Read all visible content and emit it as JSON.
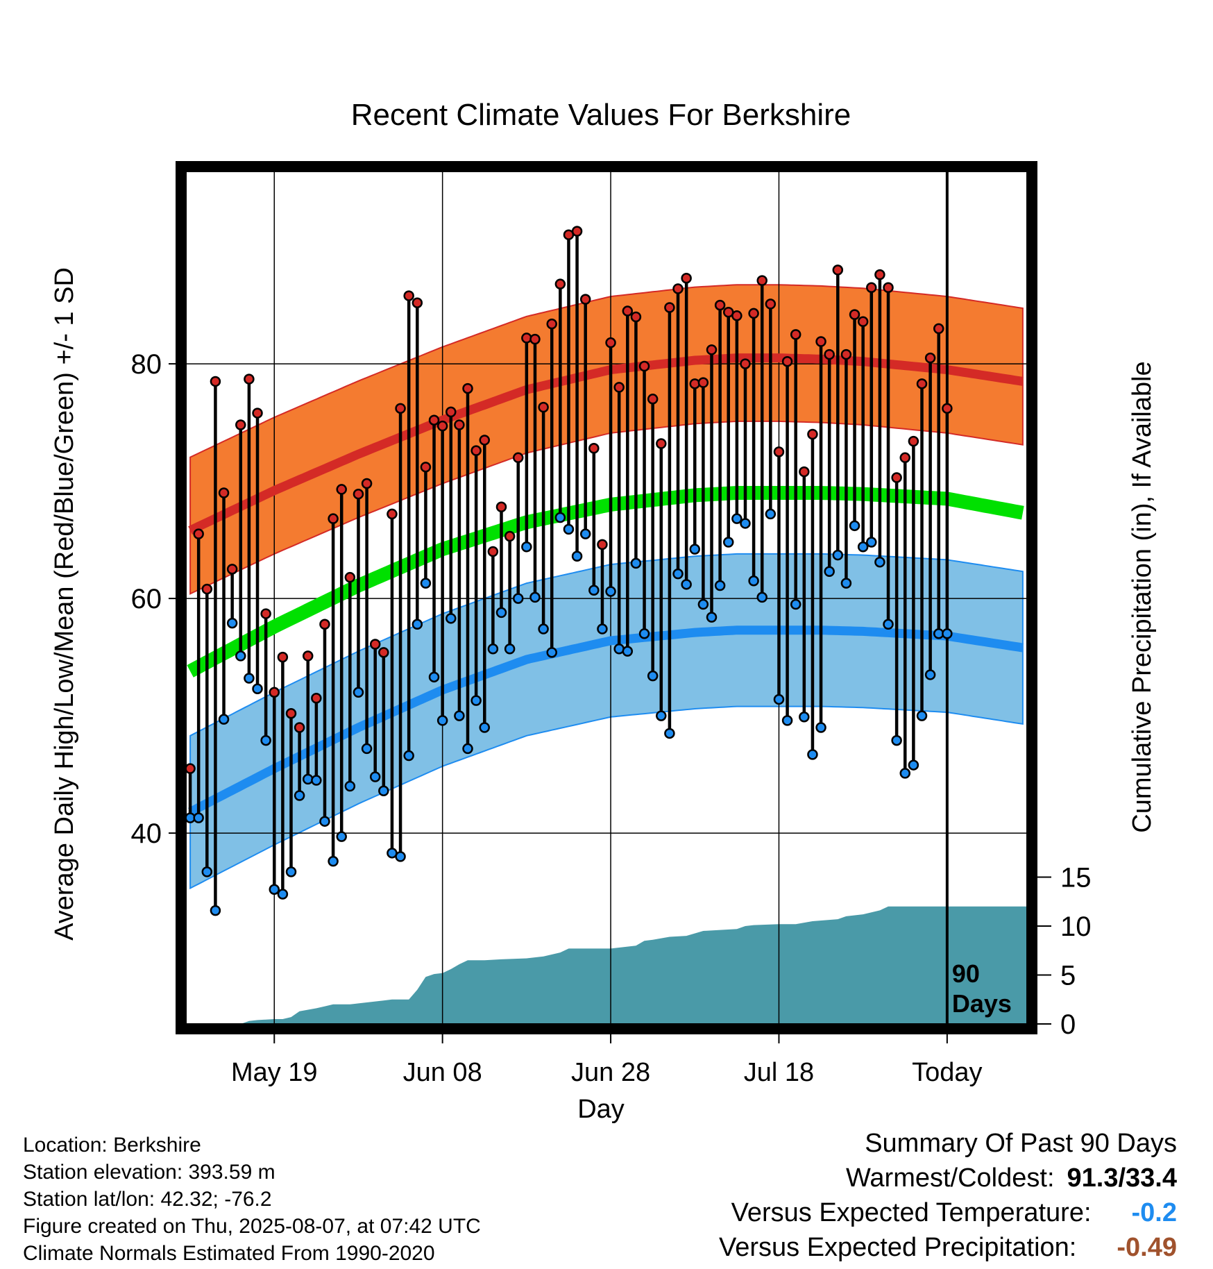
{
  "chart_data": {
    "type": "line",
    "title": "Recent Climate Values For Berkshire",
    "xlabel": "Day",
    "ylabel": "Average Daily High/Low/Mean (Red/Blue/Green) +/- 1 SD",
    "y2label": "Cumulative Precipitation (in), If Available",
    "ylim": [
      24,
      97
    ],
    "y_ticks": [
      40,
      60,
      80
    ],
    "y2lim": [
      0,
      29
    ],
    "y2_ticks": [
      0,
      5,
      10,
      15
    ],
    "x_tick_labels": [
      "May 19",
      "Jun 08",
      "Jun 28",
      "Jul 18",
      "Today"
    ],
    "x_tick_days": [
      10,
      30,
      50,
      70,
      90
    ],
    "xlim": [
      -0.5,
      99.5
    ],
    "grid": true,
    "marker_label": "90\nDays",
    "colors": {
      "high": "#d42a26",
      "high_band": "#f47b30",
      "low": "#1e8cf0",
      "low_band": "#80c0e6",
      "mean": "#00e000",
      "precip": "#4a9aa8",
      "high_dot": "#d42a26",
      "low_dot": "#1e8cf0"
    },
    "normal_high": {
      "x": [
        0,
        10,
        20,
        30,
        40,
        50,
        60,
        65,
        70,
        75,
        80,
        90,
        99
      ],
      "values": [
        65.8,
        69.2,
        72.3,
        75.2,
        77.8,
        79.5,
        80.3,
        80.5,
        80.5,
        80.4,
        80.2,
        79.5,
        78.5
      ]
    },
    "high_sd": 5.4,
    "high_upper_extra": 10.4,
    "normal_low": {
      "x": [
        0,
        10,
        20,
        30,
        40,
        50,
        60,
        65,
        70,
        75,
        80,
        90,
        99
      ],
      "values": [
        41.8,
        45.5,
        49.0,
        52.2,
        54.8,
        56.4,
        57.1,
        57.3,
        57.3,
        57.3,
        57.2,
        56.8,
        55.8
      ]
    },
    "low_sd": 6.5,
    "normal_mean": {
      "x": [
        0,
        10,
        20,
        30,
        40,
        50,
        60,
        65,
        70,
        75,
        80,
        90,
        99
      ],
      "values": [
        53.8,
        57.6,
        61.1,
        64.2,
        66.5,
        68.0,
        68.8,
        69.0,
        69.0,
        69.0,
        68.9,
        68.5,
        67.3
      ]
    },
    "series": [
      {
        "name": "High",
        "values": [
          45.5,
          65.5,
          60.8,
          78.5,
          69.0,
          62.5,
          74.8,
          78.7,
          75.8,
          58.7,
          52.0,
          55.0,
          50.2,
          49.0,
          55.1,
          51.5,
          57.8,
          66.8,
          69.3,
          61.8,
          68.9,
          69.8,
          56.1,
          55.4,
          67.2,
          76.2,
          85.8,
          85.2,
          71.2,
          75.2,
          74.7,
          75.9,
          74.8,
          77.9,
          72.6,
          73.5,
          64.0,
          67.8,
          65.3,
          72.0,
          82.2,
          82.1,
          76.3,
          83.4,
          86.8,
          91.0,
          91.3,
          85.5,
          72.8,
          64.6,
          81.8,
          78.0,
          84.5,
          84.0,
          79.8,
          77.0,
          73.2,
          84.8,
          86.4,
          87.3,
          78.3,
          78.4,
          81.2,
          85.0,
          84.4,
          84.1,
          80.0,
          84.3,
          87.1,
          85.1,
          72.5,
          80.2,
          82.5,
          70.8,
          74.0,
          81.9,
          80.8,
          88.0,
          80.8,
          84.2,
          83.6,
          86.5,
          87.6,
          86.5,
          70.3,
          72.0,
          73.4,
          78.3,
          80.5,
          83.0,
          76.2
        ]
      },
      {
        "name": "Low",
        "values": [
          41.3,
          41.3,
          36.7,
          33.4,
          49.7,
          57.9,
          55.1,
          53.2,
          52.3,
          47.9,
          35.2,
          34.8,
          36.7,
          43.2,
          44.6,
          44.5,
          41.0,
          37.6,
          39.7,
          44.0,
          52.0,
          47.2,
          44.8,
          43.6,
          38.3,
          38.0,
          46.6,
          57.8,
          61.3,
          53.3,
          49.6,
          58.3,
          50.0,
          47.2,
          51.3,
          49.0,
          55.7,
          58.8,
          55.7,
          60.0,
          64.4,
          60.1,
          57.4,
          55.4,
          66.9,
          65.9,
          63.6,
          65.5,
          60.7,
          57.4,
          60.6,
          55.7,
          55.5,
          63.0,
          57.0,
          53.4,
          50.0,
          48.5,
          62.1,
          61.2,
          64.2,
          59.5,
          58.4,
          61.1,
          64.8,
          66.8,
          66.4,
          61.5,
          60.1,
          67.2,
          51.4,
          49.6,
          59.5,
          49.9,
          46.7,
          49.0,
          62.3,
          63.7,
          61.3,
          66.2,
          64.4,
          64.8,
          63.1,
          57.8,
          47.9,
          45.1,
          45.8,
          50.0,
          53.5,
          57.0,
          57.0
        ]
      },
      {
        "name": "Cumulative Precipitation",
        "x": [
          0,
          6,
          7,
          8,
          10,
          11,
          12,
          13,
          15,
          16,
          17,
          19,
          20,
          21,
          22,
          23,
          24,
          26,
          27,
          28,
          29,
          30,
          31,
          32,
          33,
          35,
          37,
          40,
          42,
          44,
          45,
          50,
          51,
          53,
          54,
          55,
          57,
          59,
          61,
          65,
          66,
          67,
          70,
          72,
          74,
          77,
          78,
          80,
          82,
          83,
          99
        ],
        "values": [
          0,
          0,
          0.3,
          0.4,
          0.5,
          0.5,
          0.7,
          1.3,
          1.6,
          1.8,
          2.0,
          2.0,
          2.1,
          2.2,
          2.3,
          2.4,
          2.5,
          2.5,
          3.5,
          4.8,
          5.1,
          5.2,
          5.6,
          6.1,
          6.5,
          6.5,
          6.6,
          6.7,
          6.9,
          7.3,
          7.7,
          7.7,
          7.8,
          8.0,
          8.5,
          8.6,
          8.9,
          9.0,
          9.5,
          9.7,
          10.0,
          10.1,
          10.2,
          10.2,
          10.5,
          10.7,
          11.0,
          11.2,
          11.6,
          12.0,
          12.0
        ]
      }
    ]
  },
  "info": {
    "location": "Location: Berkshire",
    "elevation": "Station elevation: 393.59 m",
    "latlon": "Station lat/lon: 42.32; -76.2",
    "created": "Figure created on Thu, 2025-08-07, at 07:42 UTC",
    "normals": "Climate Normals Estimated From 1990-2020"
  },
  "summary": {
    "heading": "Summary Of Past 90 Days",
    "warm_cold_label": "Warmest/Coldest:",
    "warm_cold_value": "91.3/33.4",
    "temp_label": "Versus Expected Temperature:",
    "temp_value": "-0.2",
    "temp_color": "#1e8cf0",
    "precip_label": "Versus Expected Precipitation:",
    "precip_value": "-0.49",
    "precip_color": "#a0522d"
  }
}
